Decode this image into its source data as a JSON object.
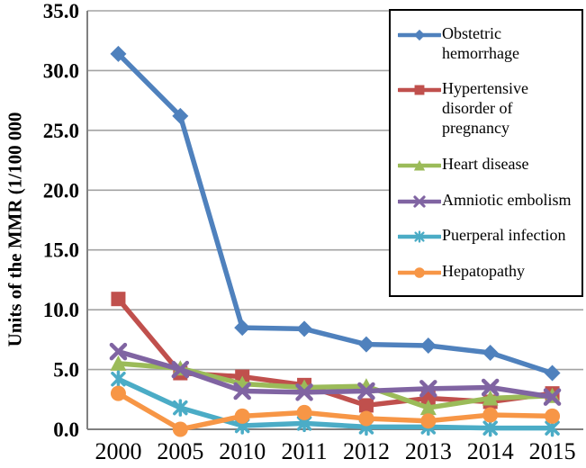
{
  "chart_data": {
    "type": "line",
    "title": "",
    "xlabel": "",
    "ylabel": "Units of the MMR (1/100 000",
    "categories": [
      "2000",
      "2005",
      "2010",
      "2011",
      "2012",
      "2013",
      "2014",
      "2015"
    ],
    "ylim": [
      0,
      35
    ],
    "ytick_step": 5,
    "ytick_labels": [
      "0.0",
      "5.0",
      "10.0",
      "15.0",
      "20.0",
      "25.0",
      "30.0",
      "35.0"
    ],
    "grid": true,
    "legend_position": "top-right-overlay",
    "axis_color": "#808080",
    "grid_color": "#a3a3a3",
    "series": [
      {
        "name": "Obstetric hemorrhage",
        "color": "#4F81BD",
        "marker": "diamond",
        "values": [
          31.4,
          26.2,
          8.5,
          8.4,
          7.1,
          7.0,
          6.4,
          4.7
        ]
      },
      {
        "name": "Hypertensive disorder of pregnancy",
        "color": "#C0504D",
        "marker": "square",
        "values": [
          10.9,
          4.7,
          4.4,
          3.7,
          2.0,
          2.6,
          2.3,
          3.0
        ]
      },
      {
        "name": "Heart disease",
        "color": "#9BBB59",
        "marker": "triangle",
        "values": [
          5.5,
          5.1,
          3.8,
          3.5,
          3.6,
          1.8,
          2.6,
          2.8
        ]
      },
      {
        "name": "Amniotic embolism",
        "color": "#8064A2",
        "marker": "x",
        "values": [
          6.5,
          5.0,
          3.2,
          3.1,
          3.2,
          3.4,
          3.5,
          2.7
        ]
      },
      {
        "name": "Puerperal infection",
        "color": "#4BACC6",
        "marker": "asterisk",
        "values": [
          4.2,
          1.8,
          0.3,
          0.5,
          0.2,
          0.2,
          0.1,
          0.1
        ]
      },
      {
        "name": "Hepatopathy",
        "color": "#F79646",
        "marker": "circle",
        "values": [
          3.0,
          0.0,
          1.1,
          1.4,
          0.9,
          0.7,
          1.2,
          1.1
        ]
      }
    ]
  }
}
